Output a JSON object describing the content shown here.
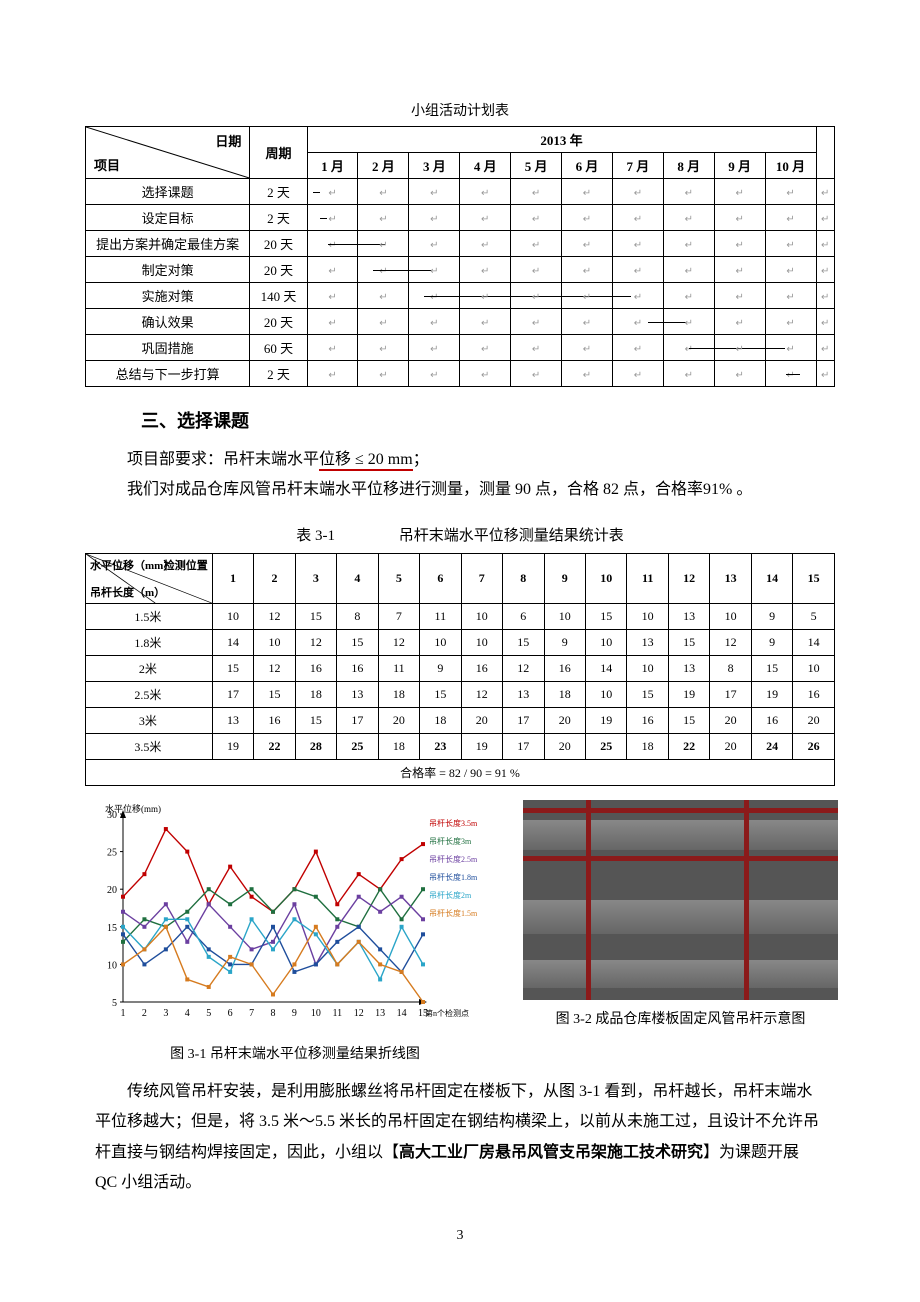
{
  "schedule": {
    "caption": "小组活动计划表",
    "year_header": "2013 年",
    "diag_top": "日期",
    "diag_bottom": "项目",
    "phase_col": "周期",
    "months": [
      "1 月",
      "2 月",
      "3 月",
      "4 月",
      "5 月",
      "6 月",
      "7 月",
      "8 月",
      "9 月",
      "10 月"
    ],
    "rows": [
      {
        "name": "选择课题",
        "period": "2 天",
        "bar_start": 0,
        "bar_span": 1,
        "bar_from": 0.1,
        "bar_to": 0.25
      },
      {
        "name": "设定目标",
        "period": "2 天",
        "bar_start": 0,
        "bar_span": 1,
        "bar_from": 0.25,
        "bar_to": 0.4
      },
      {
        "name": "提出方案并确定最佳方案",
        "period": "20 天",
        "bar_start": 0,
        "bar_span": 2,
        "bar_from": 0.4,
        "bar_to": 0.6
      },
      {
        "name": "制定对策",
        "period": "20 天",
        "bar_start": 1,
        "bar_span": 2,
        "bar_from": 0.3,
        "bar_to": 0.5
      },
      {
        "name": "实施对策",
        "period": "140 天",
        "bar_start": 2,
        "bar_span": 5,
        "bar_from": 0.3,
        "bar_to": 0.6
      },
      {
        "name": "确认效果",
        "period": "20 天",
        "bar_start": 6,
        "bar_span": 2,
        "bar_from": 0.7,
        "bar_to": 0.5
      },
      {
        "name": "巩固措施",
        "period": "60 天",
        "bar_start": 7,
        "bar_span": 3,
        "bar_from": 0.5,
        "bar_to": 0.5
      },
      {
        "name": "总结与下一步打算",
        "period": "2 天",
        "bar_start": 9,
        "bar_span": 1,
        "bar_from": 0.4,
        "bar_to": 0.7
      }
    ]
  },
  "section3": {
    "title": "三、选择课题",
    "req_prefix": "项目部要求：吊杆末端水平",
    "req_underlined": "位移 ≤ 20 mm",
    "req_suffix": "；",
    "para2": "我们对成品仓库风管吊杆末端水平位移进行测量，测量 90 点，合格 82 点，合格率91% 。"
  },
  "table31": {
    "label": "表 3-1",
    "title": "吊杆末端水平位移测量结果统计表",
    "diag_t1": "水平位移（mm）",
    "diag_t2": "检测位置",
    "diag_t3": "吊杆长度（m）",
    "positions": [
      "1",
      "2",
      "3",
      "4",
      "5",
      "6",
      "7",
      "8",
      "9",
      "10",
      "11",
      "12",
      "13",
      "14",
      "15"
    ],
    "rows": [
      {
        "label": "1.5米",
        "vals": [
          10,
          12,
          15,
          8,
          7,
          11,
          10,
          6,
          10,
          15,
          10,
          13,
          10,
          9,
          5
        ],
        "bold": []
      },
      {
        "label": "1.8米",
        "vals": [
          14,
          10,
          12,
          15,
          12,
          10,
          10,
          15,
          9,
          10,
          13,
          15,
          12,
          9,
          14
        ],
        "bold": []
      },
      {
        "label": "2米",
        "vals": [
          15,
          12,
          16,
          16,
          11,
          9,
          16,
          12,
          16,
          14,
          10,
          13,
          8,
          15,
          10
        ],
        "bold": []
      },
      {
        "label": "2.5米",
        "vals": [
          17,
          15,
          18,
          13,
          18,
          15,
          12,
          13,
          18,
          10,
          15,
          19,
          17,
          19,
          16
        ],
        "bold": []
      },
      {
        "label": "3米",
        "vals": [
          13,
          16,
          15,
          17,
          20,
          18,
          20,
          17,
          20,
          19,
          16,
          15,
          20,
          16,
          20
        ],
        "bold": []
      },
      {
        "label": "3.5米",
        "vals": [
          19,
          22,
          28,
          25,
          18,
          23,
          19,
          17,
          20,
          25,
          18,
          22,
          20,
          24,
          26
        ],
        "bold": [
          1,
          2,
          3,
          5,
          9,
          11,
          13,
          14
        ]
      }
    ],
    "footer": "合格率 = 82 / 90 = 91 %"
  },
  "chart31": {
    "caption": "图 3-1   吊杆末端水平位移测量结果折线图",
    "ylabel": "水平位移(mm)",
    "ylim": [
      5,
      30
    ],
    "yticks": [
      5,
      10,
      15,
      20,
      25,
      30
    ],
    "xticks": [
      "1",
      "2",
      "3",
      "4",
      "5",
      "6",
      "7",
      "8",
      "9",
      "10",
      "11",
      "12",
      "13",
      "14",
      "15"
    ],
    "xcaption_right": "第n个检测点",
    "series": [
      {
        "name": "吊杆长度3.5m",
        "color": "#c00000",
        "vals": [
          19,
          22,
          28,
          25,
          18,
          23,
          19,
          17,
          20,
          25,
          18,
          22,
          20,
          24,
          26
        ]
      },
      {
        "name": "吊杆长度3m",
        "color": "#1f6f3f",
        "vals": [
          13,
          16,
          15,
          17,
          20,
          18,
          20,
          17,
          20,
          19,
          16,
          15,
          20,
          16,
          20
        ]
      },
      {
        "name": "吊杆长度2.5m",
        "color": "#6b3fa0",
        "vals": [
          17,
          15,
          18,
          13,
          18,
          15,
          12,
          13,
          18,
          10,
          15,
          19,
          17,
          19,
          16
        ]
      },
      {
        "name": "吊杆长度1.8m",
        "color": "#1f4e9c",
        "vals": [
          14,
          10,
          12,
          15,
          12,
          10,
          10,
          15,
          9,
          10,
          13,
          15,
          12,
          9,
          14
        ]
      },
      {
        "name": "吊杆长度2m",
        "color": "#2aa5c8",
        "vals": [
          15,
          12,
          16,
          16,
          11,
          9,
          16,
          12,
          16,
          14,
          10,
          13,
          8,
          15,
          10
        ]
      },
      {
        "name": "吊杆长度1.5m",
        "color": "#d67b1f",
        "vals": [
          10,
          12,
          15,
          8,
          7,
          11,
          10,
          6,
          10,
          15,
          10,
          13,
          10,
          9,
          5
        ]
      }
    ]
  },
  "fig32": {
    "caption": "图 3-2    成品仓库楼板固定风管吊杆示意图"
  },
  "conclusion": {
    "p1_a": "传统风管吊杆安装，是利用膨胀螺丝将吊杆固定在楼板下，从图 3-1 看到，吊杆越长，吊杆末端水平位移越大；但是，将 3.5 米～5.5 米长的吊杆固定在钢结构横梁上，以前从未施工过，且设计不允许吊杆直接与钢结构焊接固定，因此，小组以【",
    "p1_bold": "高大工业厂房悬吊风管支吊架施工技术研究",
    "p1_b": "】为课题开展 QC 小组活动。"
  },
  "page_number": "3"
}
